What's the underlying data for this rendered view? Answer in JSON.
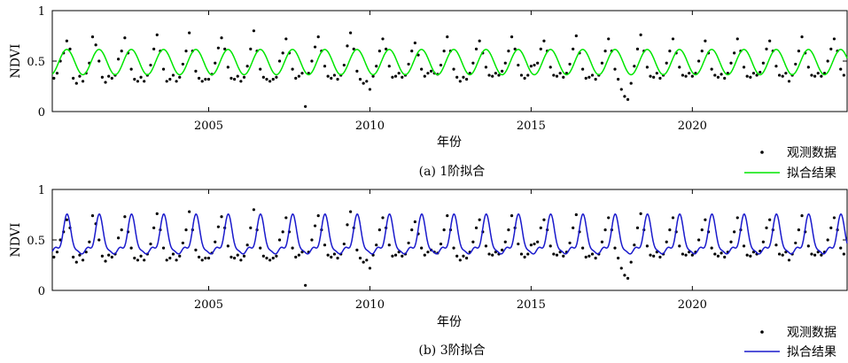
{
  "chart_data": [
    {
      "type": "scatter",
      "caption": "(a) 1阶拟合",
      "xlabel": "年份",
      "ylabel": "NDVI",
      "xlim": [
        2000.15,
        2024.8
      ],
      "ylim": [
        0,
        1
      ],
      "xticks": [
        "2005",
        "2010",
        "2015",
        "2020"
      ],
      "yticks": [
        "0",
        "0.5",
        "1"
      ],
      "legend": {
        "placement": "outside-bottom-right",
        "entries": [
          "观测数据",
          "拟合结果"
        ]
      },
      "fit": {
        "name": "拟合结果",
        "color": "#00e600",
        "order": 1,
        "mean": 0.49,
        "amplitude": 0.125,
        "period_years": 1.0,
        "peak_phase": 0.6
      }
    },
    {
      "type": "scatter",
      "caption": "(b) 3阶拟合",
      "xlabel": "年份",
      "ylabel": "NDVI",
      "xlim": [
        2000.15,
        2024.8
      ],
      "ylim": [
        0,
        1
      ],
      "xticks": [
        "2005",
        "2010",
        "2015",
        "2020"
      ],
      "yticks": [
        "0",
        "0.5",
        "1"
      ],
      "legend": {
        "placement": "outside-bottom-right",
        "entries": [
          "观测数据",
          "拟合结果"
        ]
      },
      "fit": {
        "name": "拟合结果",
        "color": "#1a1acc",
        "order": 3,
        "mean": 0.49,
        "amplitude": 0.125,
        "period_years": 1.0,
        "peak_phase": 0.6
      }
    }
  ],
  "observed": {
    "name": "观测数据",
    "color": "#000000",
    "x": [
      2000.2,
      2000.3,
      2000.4,
      2000.5,
      2000.6,
      2000.7,
      2000.8,
      2000.9,
      2001.0,
      2001.1,
      2001.2,
      2001.3,
      2001.4,
      2001.5,
      2001.6,
      2001.7,
      2001.8,
      2001.9,
      2002.0,
      2002.1,
      2002.2,
      2002.3,
      2002.4,
      2002.5,
      2002.6,
      2002.7,
      2002.8,
      2002.9,
      2003.0,
      2003.1,
      2003.2,
      2003.3,
      2003.4,
      2003.5,
      2003.6,
      2003.7,
      2003.8,
      2003.9,
      2004.0,
      2004.1,
      2004.2,
      2004.3,
      2004.4,
      2004.5,
      2004.6,
      2004.7,
      2004.8,
      2004.9,
      2005.0,
      2005.1,
      2005.2,
      2005.3,
      2005.4,
      2005.5,
      2005.6,
      2005.7,
      2005.8,
      2005.9,
      2006.0,
      2006.1,
      2006.2,
      2006.3,
      2006.4,
      2006.5,
      2006.6,
      2006.7,
      2006.8,
      2006.9,
      2007.0,
      2007.1,
      2007.2,
      2007.3,
      2007.4,
      2007.5,
      2007.6,
      2007.7,
      2007.8,
      2007.9,
      2008.0,
      2008.1,
      2008.2,
      2008.3,
      2008.4,
      2008.5,
      2008.6,
      2008.7,
      2008.8,
      2008.9,
      2009.0,
      2009.1,
      2009.2,
      2009.3,
      2009.4,
      2009.5,
      2009.6,
      2009.7,
      2009.8,
      2009.9,
      2010.0,
      2010.1,
      2010.2,
      2010.3,
      2010.4,
      2010.5,
      2010.6,
      2010.7,
      2010.8,
      2010.9,
      2011.0,
      2011.1,
      2011.2,
      2011.3,
      2011.4,
      2011.5,
      2011.6,
      2011.7,
      2011.8,
      2011.9,
      2012.0,
      2012.1,
      2012.2,
      2012.3,
      2012.4,
      2012.5,
      2012.6,
      2012.7,
      2012.8,
      2012.9,
      2013.0,
      2013.1,
      2013.2,
      2013.3,
      2013.4,
      2013.5,
      2013.6,
      2013.7,
      2013.8,
      2013.9,
      2014.0,
      2014.1,
      2014.2,
      2014.3,
      2014.4,
      2014.5,
      2014.6,
      2014.7,
      2014.8,
      2014.9,
      2015.0,
      2015.1,
      2015.2,
      2015.3,
      2015.4,
      2015.5,
      2015.6,
      2015.7,
      2015.8,
      2015.9,
      2016.0,
      2016.1,
      2016.2,
      2016.3,
      2016.4,
      2016.5,
      2016.6,
      2016.7,
      2016.8,
      2016.9,
      2017.0,
      2017.1,
      2017.2,
      2017.3,
      2017.4,
      2017.5,
      2017.6,
      2017.7,
      2017.8,
      2017.9,
      2018.0,
      2018.1,
      2018.2,
      2018.3,
      2018.4,
      2018.5,
      2018.6,
      2018.7,
      2018.8,
      2018.9,
      2019.0,
      2019.1,
      2019.2,
      2019.3,
      2019.4,
      2019.5,
      2019.6,
      2019.7,
      2019.8,
      2019.9,
      2020.0,
      2020.1,
      2020.2,
      2020.3,
      2020.4,
      2020.5,
      2020.6,
      2020.7,
      2020.8,
      2020.9,
      2021.0,
      2021.1,
      2021.2,
      2021.3,
      2021.4,
      2021.5,
      2021.6,
      2021.7,
      2021.8,
      2021.9,
      2022.0,
      2022.1,
      2022.2,
      2022.3,
      2022.4,
      2022.5,
      2022.6,
      2022.7,
      2022.8,
      2022.9,
      2023.0,
      2023.1,
      2023.2,
      2023.3,
      2023.4,
      2023.5,
      2023.6,
      2023.7,
      2023.8,
      2023.9,
      2024.0,
      2024.1,
      2024.2,
      2024.3,
      2024.4,
      2024.5,
      2024.6,
      2024.7
    ],
    "y": [
      0.33,
      0.38,
      0.5,
      0.58,
      0.7,
      0.62,
      0.33,
      0.28,
      0.35,
      0.3,
      0.38,
      0.48,
      0.74,
      0.66,
      0.5,
      0.34,
      0.29,
      0.35,
      0.33,
      0.36,
      0.52,
      0.6,
      0.73,
      0.58,
      0.42,
      0.32,
      0.3,
      0.34,
      0.3,
      0.36,
      0.46,
      0.62,
      0.76,
      0.6,
      0.42,
      0.3,
      0.32,
      0.36,
      0.3,
      0.34,
      0.47,
      0.6,
      0.78,
      0.6,
      0.4,
      0.33,
      0.3,
      0.32,
      0.32,
      0.37,
      0.48,
      0.63,
      0.73,
      0.62,
      0.44,
      0.33,
      0.32,
      0.35,
      0.3,
      0.34,
      0.45,
      0.62,
      0.8,
      0.6,
      0.42,
      0.34,
      0.32,
      0.3,
      0.32,
      0.34,
      0.5,
      0.58,
      0.72,
      0.58,
      0.42,
      0.33,
      0.35,
      0.38,
      0.05,
      0.38,
      0.5,
      0.64,
      0.74,
      0.6,
      0.45,
      0.35,
      0.33,
      0.36,
      0.32,
      0.36,
      0.46,
      0.65,
      0.78,
      0.62,
      0.4,
      0.32,
      0.28,
      0.3,
      0.22,
      0.35,
      0.45,
      0.6,
      0.72,
      0.62,
      0.45,
      0.34,
      0.35,
      0.38,
      0.34,
      0.36,
      0.47,
      0.6,
      0.68,
      0.56,
      0.42,
      0.35,
      0.38,
      0.4,
      0.38,
      0.37,
      0.46,
      0.6,
      0.74,
      0.6,
      0.42,
      0.34,
      0.3,
      0.34,
      0.32,
      0.38,
      0.48,
      0.62,
      0.7,
      0.58,
      0.44,
      0.36,
      0.35,
      0.38,
      0.36,
      0.4,
      0.48,
      0.6,
      0.74,
      0.62,
      0.46,
      0.36,
      0.33,
      0.36,
      0.45,
      0.46,
      0.48,
      0.62,
      0.7,
      0.6,
      0.44,
      0.36,
      0.35,
      0.38,
      0.34,
      0.38,
      0.47,
      0.62,
      0.75,
      0.58,
      0.42,
      0.33,
      0.34,
      0.36,
      0.32,
      0.36,
      0.48,
      0.6,
      0.72,
      0.6,
      0.42,
      0.32,
      0.22,
      0.15,
      0.12,
      0.28,
      0.45,
      0.62,
      0.76,
      0.6,
      0.44,
      0.35,
      0.34,
      0.38,
      0.33,
      0.36,
      0.48,
      0.6,
      0.72,
      0.58,
      0.44,
      0.36,
      0.35,
      0.38,
      0.35,
      0.38,
      0.5,
      0.6,
      0.7,
      0.58,
      0.42,
      0.36,
      0.34,
      0.37,
      0.33,
      0.38,
      0.48,
      0.58,
      0.72,
      0.6,
      0.44,
      0.35,
      0.34,
      0.38,
      0.36,
      0.39,
      0.48,
      0.62,
      0.7,
      0.6,
      0.45,
      0.36,
      0.35,
      0.38,
      0.3,
      0.36,
      0.47,
      0.6,
      0.74,
      0.58,
      0.44,
      0.36,
      0.35,
      0.38,
      0.35,
      0.38,
      0.5,
      0.62,
      0.72,
      0.6,
      0.42,
      0.36
    ]
  }
}
